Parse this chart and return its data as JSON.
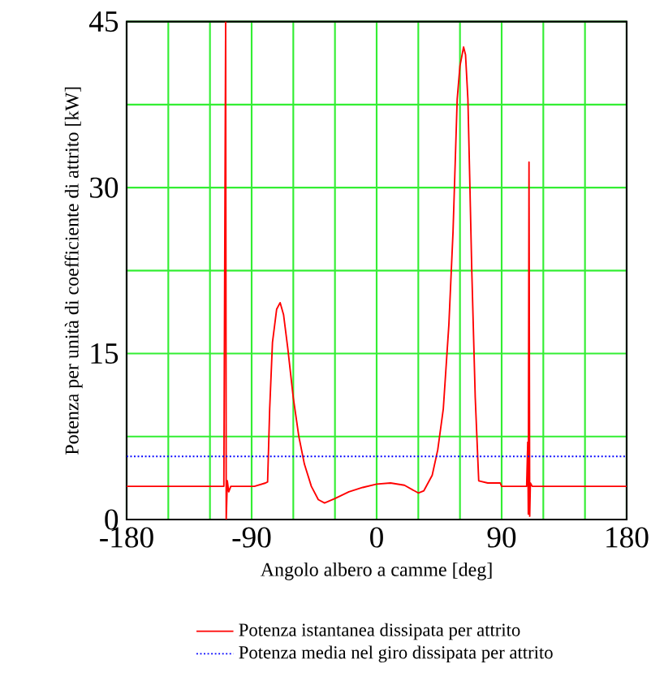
{
  "chart_data": {
    "type": "line",
    "xlabel": "Angolo albero a camme [deg]",
    "ylabel": "Potenza per unità di coefficiente di attrito [kW]",
    "xlim": [
      -180,
      180
    ],
    "ylim": [
      0,
      45
    ],
    "xticks": [
      -180,
      {
        "value": -150,
        "label": null
      },
      {
        "value": -120,
        "label": null
      },
      -90,
      {
        "value": -60,
        "label": null
      },
      {
        "value": -30,
        "label": null
      },
      0,
      {
        "value": 30,
        "label": null
      },
      {
        "value": 60,
        "label": null
      },
      90,
      {
        "value": 120,
        "label": null
      },
      {
        "value": 150,
        "label": null
      },
      180
    ],
    "yticks": [
      0,
      {
        "value": 7.5,
        "label": null
      },
      15,
      {
        "value": 22.5,
        "label": null
      },
      30,
      {
        "value": 37.5,
        "label": null
      },
      45
    ],
    "grid": true,
    "legend": "bottom",
    "series": [
      {
        "name": "Potenza istantanea dissipata per attrito",
        "color": "#ff0000",
        "line_style": "solid",
        "x": [
          -180,
          -110,
          -108.7,
          -108.3,
          -107.5,
          -106.5,
          -105,
          -88,
          -80,
          -78.5,
          -77,
          -75,
          -72,
          -69.5,
          -67,
          -64,
          -60,
          -56,
          -52,
          -47,
          -42,
          -37.5,
          -30,
          -20,
          -10,
          0,
          10,
          20,
          30,
          34,
          40,
          44,
          48,
          52,
          55,
          58,
          60,
          62.6,
          64,
          65.7,
          67,
          68.5,
          71,
          73.5,
          80,
          89,
          90,
          108,
          108.8,
          109.2,
          109.7,
          110.2,
          110.7,
          112,
          180
        ],
        "values": [
          3.0,
          3.0,
          45,
          0,
          3.5,
          2.5,
          3.0,
          3.0,
          3.3,
          3.4,
          10,
          16,
          19,
          19.6,
          18.5,
          15.5,
          11,
          7.5,
          5,
          3,
          1.8,
          1.5,
          1.9,
          2.5,
          2.9,
          3.2,
          3.3,
          3.1,
          2.4,
          2.6,
          4,
          6.3,
          10,
          17.6,
          26,
          38,
          41,
          42.7,
          42,
          38,
          31,
          22.5,
          11,
          3.5,
          3.3,
          3.3,
          3.0,
          3.0,
          7,
          0.5,
          32.3,
          0.3,
          3.3,
          3.0,
          3.0
        ]
      },
      {
        "name": "Potenza media nel giro dissipata per attrito",
        "color": "#0000ff",
        "line_style": "dotted",
        "x": [
          -180,
          180
        ],
        "values": [
          5.7,
          5.7
        ]
      }
    ]
  }
}
